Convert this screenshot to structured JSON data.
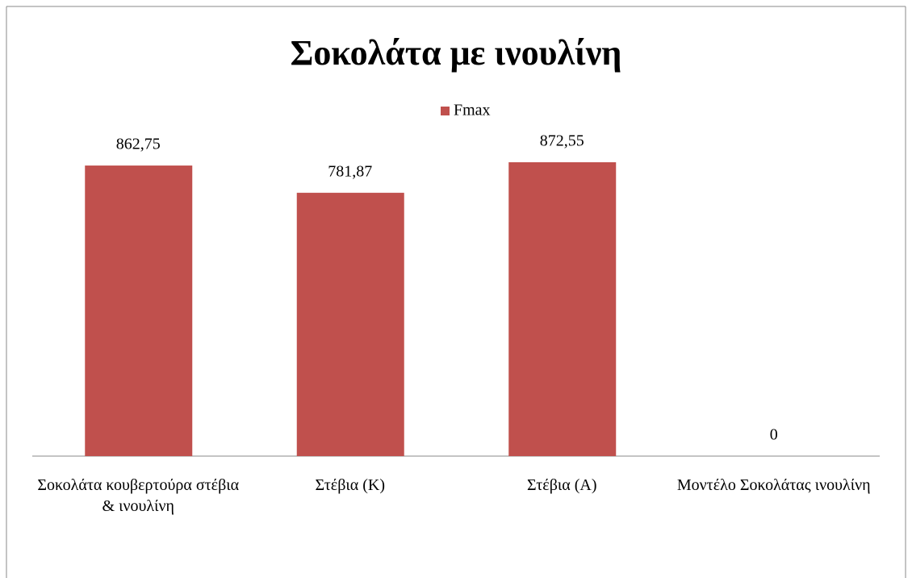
{
  "chart_data": {
    "type": "bar",
    "title": "Σοκολάτα με ινουλίνη",
    "categories": [
      "Σοκολάτα κουβερτούρα στέβια & ινουλίνη",
      "Στέβια (Κ)",
      "Στέβια (Α)",
      "Μοντέλο Σοκολάτας ινουλίνη"
    ],
    "series": [
      {
        "name": "Fmax",
        "color": "#c0504d",
        "values": [
          862.75,
          781.87,
          872.55,
          0
        ],
        "value_labels": [
          "862,75",
          "781,87",
          "872,55",
          "0"
        ]
      }
    ],
    "legend": "top"
  }
}
